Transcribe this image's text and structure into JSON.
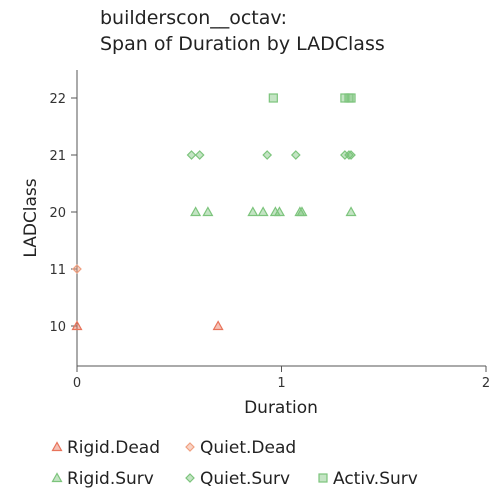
{
  "chart_data": {
    "type": "scatter",
    "title": [
      "builderscon__octav:",
      "Span of Duration by LADClass"
    ],
    "xlabel": "Duration",
    "ylabel": "LADClass",
    "xlim": [
      0,
      2
    ],
    "x_ticks": [
      0,
      1,
      2
    ],
    "y_categories": [
      "10",
      "11",
      "20",
      "21",
      "22"
    ],
    "grid": false,
    "legend_position": "bottom",
    "series": [
      {
        "name": "Rigid.Dead",
        "marker": "triangle",
        "color": "#e8735a",
        "points": [
          {
            "x": 0.0,
            "y": "10"
          },
          {
            "x": 0.69,
            "y": "10"
          }
        ]
      },
      {
        "name": "Quiet.Dead",
        "marker": "diamond",
        "color": "#f0a080",
        "points": [
          {
            "x": 0.0,
            "y": "11"
          }
        ]
      },
      {
        "name": "Rigid.Surv",
        "marker": "triangle",
        "color": "#7cc47c",
        "points": [
          {
            "x": 0.58,
            "y": "20"
          },
          {
            "x": 0.64,
            "y": "20"
          },
          {
            "x": 0.86,
            "y": "20"
          },
          {
            "x": 0.91,
            "y": "20"
          },
          {
            "x": 0.97,
            "y": "20"
          },
          {
            "x": 0.99,
            "y": "20"
          },
          {
            "x": 1.09,
            "y": "20"
          },
          {
            "x": 1.1,
            "y": "20"
          },
          {
            "x": 1.34,
            "y": "20"
          }
        ]
      },
      {
        "name": "Quiet.Surv",
        "marker": "diamond",
        "color": "#7cc47c",
        "points": [
          {
            "x": 0.56,
            "y": "21"
          },
          {
            "x": 0.6,
            "y": "21"
          },
          {
            "x": 0.93,
            "y": "21"
          },
          {
            "x": 1.07,
            "y": "21"
          },
          {
            "x": 1.31,
            "y": "21"
          },
          {
            "x": 1.33,
            "y": "21"
          },
          {
            "x": 1.34,
            "y": "21"
          }
        ]
      },
      {
        "name": "Activ.Surv",
        "marker": "square",
        "color": "#7cc47c",
        "points": [
          {
            "x": 0.96,
            "y": "22"
          },
          {
            "x": 1.31,
            "y": "22"
          },
          {
            "x": 1.33,
            "y": "22"
          },
          {
            "x": 1.34,
            "y": "22"
          }
        ]
      }
    ]
  }
}
